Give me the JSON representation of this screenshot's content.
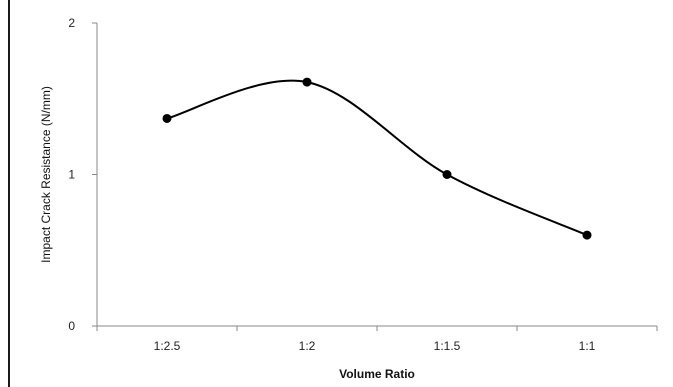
{
  "chart_data": {
    "type": "line",
    "title": "",
    "xlabel": "Volume Ratio",
    "ylabel": "Impact Crack Resistance (N/mm)",
    "categories": [
      "1:2.5",
      "1:2",
      "1:1.5",
      "1:1"
    ],
    "series": [
      {
        "values": [
          1.37,
          1.61,
          1.0,
          0.6
        ]
      }
    ],
    "ylim": [
      0,
      2
    ],
    "yticks": [
      0,
      1,
      2
    ],
    "grid": false,
    "smooth": true,
    "line_color": "#000000",
    "marker_color": "#000000"
  }
}
